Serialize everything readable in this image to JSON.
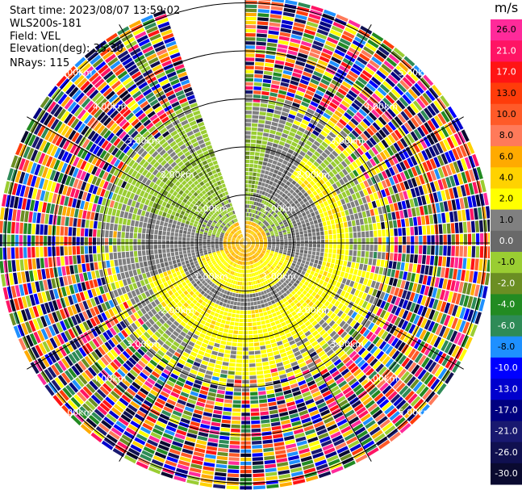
{
  "info": {
    "start_time": "Start time: 2023/08/07 13:59:02",
    "instrument": "WLS200s-181",
    "field": "Field: VEL",
    "elevation": "Elevation(deg): 35.30",
    "nrays": "NRays: 115"
  },
  "colorbar": {
    "unit": "m/s",
    "bins": [
      {
        "label": "26.0",
        "color": "#ff2a9a"
      },
      {
        "label": "21.0",
        "color": "#ff1464"
      },
      {
        "label": "17.0",
        "color": "#ff1414"
      },
      {
        "label": "13.0",
        "color": "#ff3c0a"
      },
      {
        "label": "10.0",
        "color": "#ff5a28"
      },
      {
        "label": "8.0",
        "color": "#ff7a5a"
      },
      {
        "label": "6.0",
        "color": "#ffaa00"
      },
      {
        "label": "4.0",
        "color": "#ffd200"
      },
      {
        "label": "2.0",
        "color": "#ffff00"
      },
      {
        "label": "1.0",
        "color": "#808080"
      },
      {
        "label": "0.0",
        "color": "#696969"
      },
      {
        "label": "-1.0",
        "color": "#9acd32"
      },
      {
        "label": "-2.0",
        "color": "#6b8e23"
      },
      {
        "label": "-4.0",
        "color": "#228b22"
      },
      {
        "label": "-6.0",
        "color": "#2e8b57"
      },
      {
        "label": "-8.0",
        "color": "#1e90ff"
      },
      {
        "label": "-10.0",
        "color": "#0000ff"
      },
      {
        "label": "-13.0",
        "color": "#0000cd"
      },
      {
        "label": "-17.0",
        "color": "#000080"
      },
      {
        "label": "-21.0",
        "color": "#191970"
      },
      {
        "label": "-26.0",
        "color": "#101050"
      },
      {
        "label": "-30.0",
        "color": "#0a0a30"
      }
    ]
  },
  "chart_data": {
    "type": "heatmap",
    "projection": "polar PPI scan",
    "field": "VEL",
    "units": "m/s",
    "range_ring_labels": [
      "1.00km",
      "2.00km",
      "3.00km",
      "4.00km",
      "5.00km"
    ],
    "range_rings_km": [
      1,
      2,
      3,
      4,
      5
    ],
    "data_gap_azimuth_deg": [
      340,
      360
    ],
    "cells": "radial velocity field rendered as azimuth/range gates"
  }
}
